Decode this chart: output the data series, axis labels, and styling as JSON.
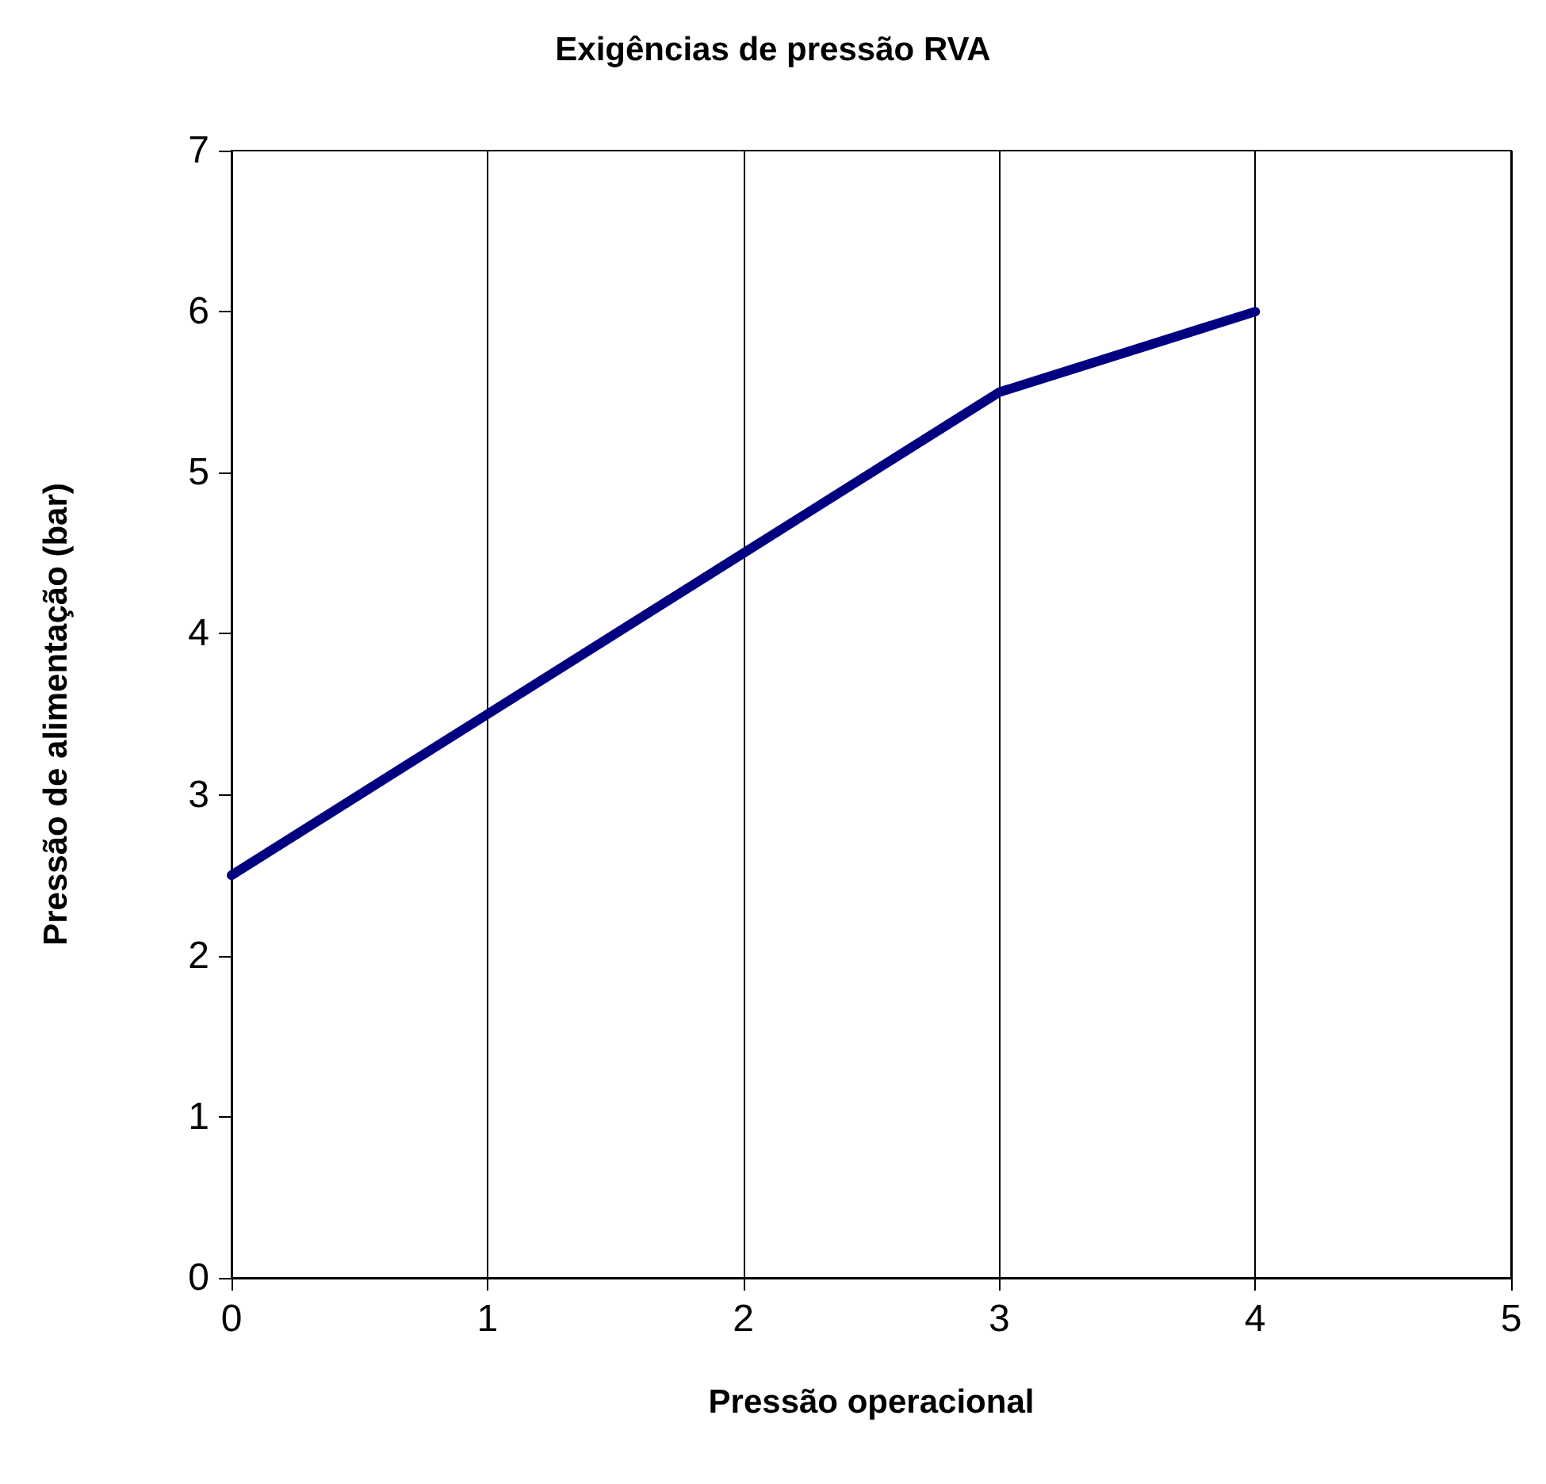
{
  "chart_data": {
    "type": "line",
    "title": "Exigências de pressão RVA",
    "xlabel": "Pressão operacional",
    "ylabel": "Pressão de alimentação (bar)",
    "x": [
      0,
      1,
      2,
      3,
      4
    ],
    "series": [
      {
        "color": "#000080",
        "values": [
          2.5,
          3.5,
          4.5,
          5.5,
          6
        ]
      }
    ],
    "xlim": [
      0,
      5
    ],
    "xticks": [
      0,
      1,
      2,
      3,
      4,
      5
    ],
    "ylim": [
      0,
      7
    ],
    "yticks": [
      0,
      1,
      2,
      3,
      4,
      5,
      6,
      7
    ],
    "grid": "x",
    "marker": "none",
    "line_style": "solid"
  }
}
